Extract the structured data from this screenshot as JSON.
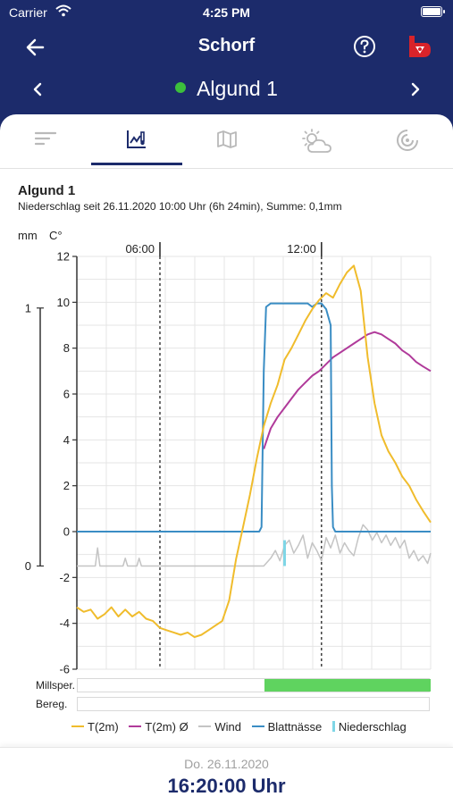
{
  "status_bar": {
    "carrier": "Carrier",
    "time": "4:25 PM"
  },
  "nav": {
    "title": "Schorf"
  },
  "station": {
    "name": "Algund 1",
    "status_color": "#3cbf3c"
  },
  "tabs": [
    {
      "id": "list",
      "icon": "sort-lines-icon",
      "active": false
    },
    {
      "id": "chart",
      "icon": "chart-icon",
      "active": true
    },
    {
      "id": "map",
      "icon": "map-icon",
      "active": false
    },
    {
      "id": "weather",
      "icon": "partly-cloudy-icon",
      "active": false
    },
    {
      "id": "radar",
      "icon": "radar-icon",
      "active": false
    }
  ],
  "content": {
    "heading": "Algund 1",
    "precip_info": "Niederschlag seit 26.11.2020 10:00 Uhr (6h 24min), Summe: 0,1mm"
  },
  "colors": {
    "brand": "#1c2b6b",
    "temp": "#f0bc2c",
    "temp_avg": "#b03a9a",
    "wind": "#c4c4c4",
    "leaf_wetness": "#3a8dc4",
    "precip": "#7fd6e6",
    "infection_bar": "#5fd35f"
  },
  "chart_data": {
    "type": "line",
    "x_unit": "hours",
    "xlim": [
      0,
      15.33
    ],
    "time_markers": [
      {
        "x": 3.6,
        "label": "06:00"
      },
      {
        "x": 10.6,
        "label": "12:00"
      }
    ],
    "left_axis": {
      "unit": "mm",
      "ticks": [
        0,
        1
      ],
      "ylim": [
        -0.4,
        1.2
      ]
    },
    "right_axis": {
      "unit": "C°",
      "ticks": [
        12,
        10,
        8,
        6,
        4,
        2,
        0,
        -2,
        -4,
        -6
      ],
      "ylim": [
        -6,
        12
      ]
    },
    "grid": true,
    "series": [
      {
        "name": "T(2m)",
        "axis": "temp",
        "x": [
          0,
          0.3,
          0.6,
          0.9,
          1.2,
          1.5,
          1.8,
          2.1,
          2.4,
          2.7,
          3.0,
          3.3,
          3.6,
          3.9,
          4.2,
          4.5,
          4.8,
          5.1,
          5.4,
          5.7,
          6.0,
          6.3,
          6.6,
          6.9,
          7.2,
          7.5,
          7.8,
          8.1,
          8.4,
          8.7,
          9.0,
          9.3,
          9.6,
          9.9,
          10.2,
          10.5,
          10.8,
          11.1,
          11.4,
          11.7,
          12.0,
          12.3,
          12.6,
          12.9,
          13.2,
          13.5,
          13.8,
          14.1,
          14.4,
          14.7,
          15.0,
          15.33
        ],
        "y": [
          -3.3,
          -3.5,
          -3.4,
          -3.8,
          -3.6,
          -3.3,
          -3.7,
          -3.4,
          -3.7,
          -3.5,
          -3.8,
          -3.9,
          -4.2,
          -4.3,
          -4.4,
          -4.5,
          -4.4,
          -4.6,
          -4.5,
          -4.3,
          -4.1,
          -3.9,
          -3.0,
          -1.2,
          0.2,
          1.6,
          3.2,
          4.6,
          5.6,
          6.4,
          7.5,
          8.0,
          8.6,
          9.2,
          9.7,
          10.1,
          10.4,
          10.2,
          10.8,
          11.3,
          11.6,
          10.5,
          7.6,
          5.6,
          4.2,
          3.5,
          3.0,
          2.4,
          2.0,
          1.4,
          0.9,
          0.4
        ]
      },
      {
        "name": "T(2m) Ø",
        "axis": "temp",
        "x": [
          8.1,
          8.4,
          8.7,
          9.0,
          9.3,
          9.6,
          9.9,
          10.2,
          10.5,
          10.8,
          11.1,
          11.4,
          11.7,
          12.0,
          12.3,
          12.6,
          12.9,
          13.2,
          13.5,
          13.8,
          14.1,
          14.4,
          14.7,
          15.0,
          15.33
        ],
        "y": [
          3.6,
          4.5,
          5.0,
          5.4,
          5.8,
          6.2,
          6.5,
          6.8,
          7.0,
          7.3,
          7.6,
          7.8,
          8.0,
          8.2,
          8.4,
          8.6,
          8.7,
          8.6,
          8.4,
          8.2,
          7.9,
          7.7,
          7.4,
          7.2,
          7.0
        ]
      },
      {
        "name": "Wind",
        "axis": "mm",
        "x": [
          0,
          0.8,
          0.9,
          1.0,
          1.2,
          2.0,
          2.1,
          2.2,
          2.6,
          2.7,
          2.8,
          3.5,
          4.0,
          4.5,
          5.0,
          5.5,
          6.0,
          6.5,
          7.0,
          7.5,
          8.1,
          8.4,
          8.6,
          8.8,
          9.0,
          9.2,
          9.4,
          9.6,
          9.8,
          10.0,
          10.2,
          10.4,
          10.6,
          10.8,
          11.0,
          11.2,
          11.4,
          11.6,
          11.8,
          12.0,
          12.2,
          12.4,
          12.6,
          12.8,
          13.0,
          13.2,
          13.4,
          13.6,
          13.8,
          14.0,
          14.2,
          14.4,
          14.6,
          14.8,
          15.0,
          15.2,
          15.33
        ],
        "y": [
          0,
          0,
          0.07,
          0,
          0,
          0,
          0.03,
          0,
          0,
          0.03,
          0,
          0,
          0,
          0,
          0,
          0,
          0,
          0,
          0,
          0,
          0,
          0.03,
          0.06,
          0.02,
          0.08,
          0.1,
          0.05,
          0.08,
          0.12,
          0.03,
          0.09,
          0.06,
          0.02,
          0.11,
          0.07,
          0.12,
          0.05,
          0.09,
          0.06,
          0.04,
          0.11,
          0.16,
          0.14,
          0.1,
          0.13,
          0.09,
          0.12,
          0.08,
          0.11,
          0.07,
          0.1,
          0.03,
          0.06,
          0.02,
          0.04,
          0.01,
          0.05
        ]
      },
      {
        "name": "Blattnässe",
        "axis": "temp",
        "x": [
          0,
          7.9,
          8.0,
          8.1,
          8.2,
          8.4,
          9.0,
          9.6,
          10.0,
          10.2,
          10.4,
          10.6,
          10.8,
          11.0,
          11.05,
          11.1,
          11.2,
          15.33
        ],
        "y": [
          0,
          0,
          0.2,
          7.0,
          9.8,
          9.95,
          9.95,
          9.95,
          9.95,
          9.8,
          9.95,
          9.95,
          9.7,
          9.0,
          2.0,
          0.2,
          0,
          0
        ]
      }
    ],
    "bars": [
      {
        "name": "Niederschlag",
        "axis": "mm",
        "x": 9.0,
        "value": 0.1
      }
    ],
    "status_rows": [
      {
        "label": "Millsper.",
        "fill_from": 8.1,
        "fill_to": 15.33
      },
      {
        "label": "Bereg.",
        "fill_from": null,
        "fill_to": null
      }
    ],
    "legend": [
      "T(2m)",
      "T(2m) Ø",
      "Wind",
      "Blattnässe",
      "Niederschlag"
    ]
  },
  "footer": {
    "date": "Do. 26.11.2020",
    "time": "16:20:00 Uhr"
  }
}
